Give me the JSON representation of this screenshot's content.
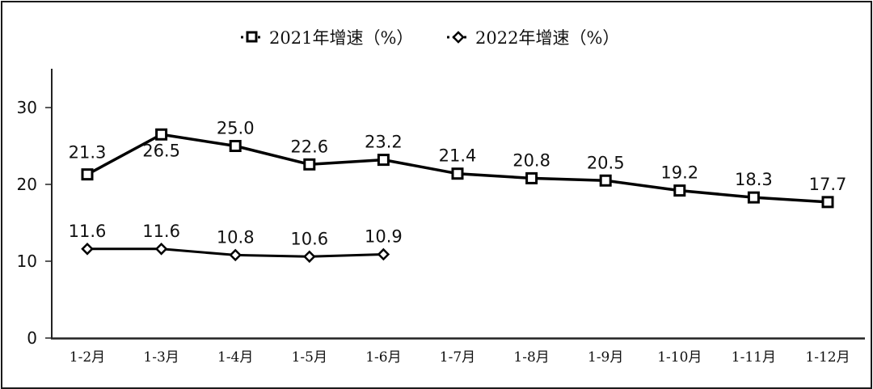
{
  "chart_data": {
    "type": "line",
    "title": "",
    "xlabel": "",
    "ylabel": "",
    "categories": [
      "1-2月",
      "1-3月",
      "1-4月",
      "1-5月",
      "1-6月",
      "1-7月",
      "1-8月",
      "1-9月",
      "1-10月",
      "1-11月",
      "1-12月"
    ],
    "series": [
      {
        "name": "2021年增速（%）",
        "marker": "square",
        "color": "#000000",
        "values": [
          21.3,
          26.5,
          25.0,
          22.6,
          23.2,
          21.4,
          20.8,
          20.5,
          19.2,
          18.3,
          17.7
        ],
        "labels": [
          "21.3",
          "26.5",
          "25.0",
          "22.6",
          "23.2",
          "21.4",
          "20.8",
          "20.5",
          "19.2",
          "18.3",
          "17.7"
        ]
      },
      {
        "name": "2022年增速（%）",
        "marker": "diamond",
        "color": "#000000",
        "values": [
          11.6,
          11.6,
          10.8,
          10.6,
          10.9,
          null,
          null,
          null,
          null,
          null,
          null
        ],
        "labels": [
          "11.6",
          "11.6",
          "10.8",
          "10.6",
          "10.9"
        ]
      }
    ],
    "yticks": [
      "0",
      "10",
      "20",
      "30"
    ],
    "ytick_values": [
      0,
      10,
      20,
      30
    ],
    "ylim": [
      0,
      35
    ],
    "grid": false,
    "legend_position": "top-center"
  }
}
